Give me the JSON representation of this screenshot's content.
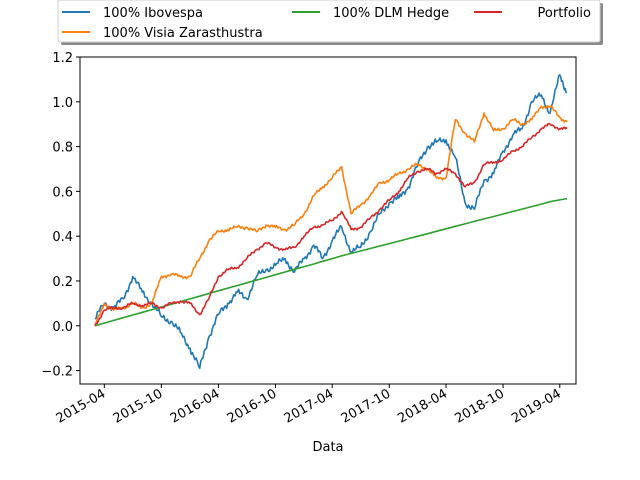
{
  "chart_data": {
    "type": "line",
    "title": "",
    "xlabel": "Data",
    "ylabel": "",
    "ylim": [
      -0.26,
      1.2
    ],
    "xlim": [
      "2015-01-13",
      "2019-05-23"
    ],
    "grid": false,
    "legend_position": "top",
    "yticks": [
      -0.2,
      0.0,
      0.2,
      0.4,
      0.6,
      0.8,
      1.0,
      1.2
    ],
    "ytick_labels": [
      "−0.2",
      "0.0",
      "0.2",
      "0.4",
      "0.6",
      "0.8",
      "1.0",
      "1.2"
    ],
    "xticks": [
      "2015-04",
      "2015-10",
      "2016-04",
      "2016-10",
      "2017-04",
      "2017-10",
      "2018-04",
      "2018-10",
      "2019-04"
    ],
    "x": [
      "2015-03-02",
      "2015-04",
      "2015-05",
      "2015-06",
      "2015-07",
      "2015-08",
      "2015-09",
      "2015-10",
      "2015-11",
      "2015-12",
      "2016-01",
      "2016-02",
      "2016-03",
      "2016-04",
      "2016-05",
      "2016-06",
      "2016-07",
      "2016-08",
      "2016-09",
      "2016-10",
      "2016-11",
      "2016-12",
      "2017-01",
      "2017-02",
      "2017-03",
      "2017-04",
      "2017-05",
      "2017-06",
      "2017-07",
      "2017-08",
      "2017-09",
      "2017-10",
      "2017-11",
      "2017-12",
      "2018-01",
      "2018-02",
      "2018-03",
      "2018-04",
      "2018-05",
      "2018-06",
      "2018-07",
      "2018-08",
      "2018-09",
      "2018-10",
      "2018-11",
      "2018-12",
      "2019-01",
      "2019-02",
      "2019-03",
      "2019-04",
      "2019-04-24"
    ],
    "series": [
      {
        "name": "100% Ibovespa",
        "color": "#1f77b4",
        "values": [
          0.03,
          0.1,
          0.08,
          0.12,
          0.22,
          0.15,
          0.1,
          0.04,
          0.02,
          -0.03,
          -0.1,
          -0.19,
          -0.05,
          0.05,
          0.1,
          0.15,
          0.12,
          0.22,
          0.25,
          0.27,
          0.3,
          0.24,
          0.3,
          0.36,
          0.3,
          0.38,
          0.44,
          0.33,
          0.35,
          0.42,
          0.5,
          0.55,
          0.57,
          0.62,
          0.72,
          0.8,
          0.82,
          0.83,
          0.75,
          0.55,
          0.52,
          0.65,
          0.68,
          0.78,
          0.85,
          0.88,
          1.0,
          1.03,
          0.95,
          1.12,
          1.04
        ]
      },
      {
        "name": "100% Visia Zarasthustra",
        "color": "#ff7f0e",
        "values": [
          0.0,
          0.1,
          0.07,
          0.08,
          0.1,
          0.08,
          0.1,
          0.22,
          0.23,
          0.22,
          0.22,
          0.3,
          0.38,
          0.42,
          0.43,
          0.44,
          0.44,
          0.42,
          0.45,
          0.44,
          0.43,
          0.45,
          0.5,
          0.58,
          0.62,
          0.66,
          0.71,
          0.5,
          0.54,
          0.58,
          0.64,
          0.65,
          0.68,
          0.7,
          0.72,
          0.7,
          0.66,
          0.66,
          0.92,
          0.86,
          0.82,
          0.95,
          0.87,
          0.88,
          0.92,
          0.9,
          0.92,
          0.98,
          0.98,
          0.93,
          0.91
        ]
      },
      {
        "name": "100% DLM Hedge",
        "color": "#2ca02c",
        "values": [
          0.0,
          0.012,
          0.024,
          0.036,
          0.048,
          0.06,
          0.072,
          0.084,
          0.096,
          0.108,
          0.12,
          0.132,
          0.144,
          0.156,
          0.168,
          0.18,
          0.192,
          0.204,
          0.216,
          0.228,
          0.24,
          0.252,
          0.264,
          0.276,
          0.288,
          0.3,
          0.312,
          0.323,
          0.334,
          0.345,
          0.356,
          0.367,
          0.378,
          0.389,
          0.4,
          0.411,
          0.422,
          0.433,
          0.444,
          0.455,
          0.466,
          0.477,
          0.488,
          0.499,
          0.51,
          0.521,
          0.532,
          0.543,
          0.554,
          0.562,
          0.568
        ]
      },
      {
        "name": "Portfolio",
        "color": "#d62728",
        "values": [
          0.0,
          0.07,
          0.08,
          0.08,
          0.1,
          0.09,
          0.1,
          0.08,
          0.1,
          0.11,
          0.1,
          0.05,
          0.12,
          0.22,
          0.25,
          0.26,
          0.3,
          0.34,
          0.37,
          0.35,
          0.34,
          0.35,
          0.4,
          0.44,
          0.45,
          0.47,
          0.51,
          0.43,
          0.44,
          0.48,
          0.52,
          0.56,
          0.6,
          0.66,
          0.69,
          0.7,
          0.68,
          0.7,
          0.68,
          0.62,
          0.64,
          0.72,
          0.73,
          0.74,
          0.78,
          0.8,
          0.84,
          0.88,
          0.9,
          0.88,
          0.88
        ]
      }
    ]
  }
}
